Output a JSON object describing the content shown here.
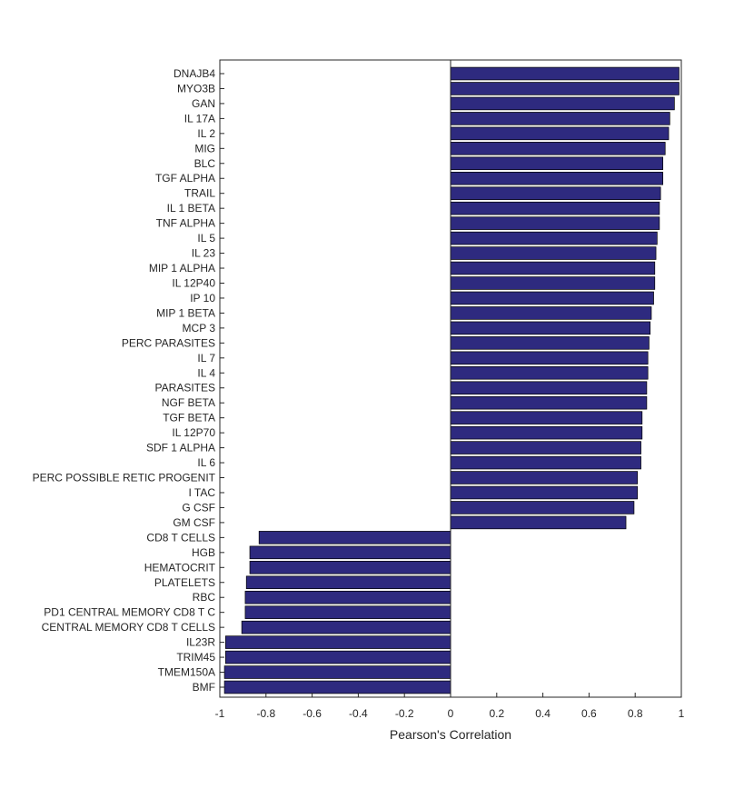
{
  "chart_data": {
    "type": "bar",
    "orientation": "horizontal",
    "xlabel": "Pearson's Correlation",
    "ylabel": "",
    "title": "",
    "xlim": [
      -1,
      1
    ],
    "xticks": [
      -1,
      -0.8,
      -0.6,
      -0.4,
      -0.2,
      0,
      0.2,
      0.4,
      0.6,
      0.8,
      1
    ],
    "xtick_labels": [
      "-1",
      "-0.8",
      "-0.6",
      "-0.4",
      "-0.2",
      "0",
      "0.2",
      "0.4",
      "0.6",
      "0.8",
      "1"
    ],
    "grid": false,
    "bar_color": "#2e2a7f",
    "categories": [
      "DNAJB4",
      "MYO3B",
      "GAN",
      "IL 17A",
      "IL 2",
      "MIG",
      "BLC",
      "TGF ALPHA",
      "TRAIL",
      "IL 1 BETA",
      "TNF ALPHA",
      "IL 5",
      "IL 23",
      "MIP 1 ALPHA",
      "IL 12P40",
      "IP 10",
      "MIP 1 BETA",
      "MCP 3",
      "PERC PARASITES",
      "IL 7",
      "IL 4",
      "PARASITES",
      "NGF BETA",
      "TGF BETA",
      "IL 12P70",
      "SDF 1 ALPHA",
      "IL 6",
      "PERC POSSIBLE RETIC PROGENIT",
      "I TAC",
      "G CSF",
      "GM CSF",
      "CD8  T CELLS",
      "HGB",
      "HEMATOCRIT",
      "PLATELETS",
      "RBC",
      "PD1  CENTRAL MEMORY CD8  T C",
      "CENTRAL MEMORY CD8  T CELLS",
      "IL23R",
      "TRIM45",
      "TMEM150A",
      "BMF"
    ],
    "values": [
      0.99,
      0.99,
      0.97,
      0.95,
      0.945,
      0.93,
      0.92,
      0.92,
      0.91,
      0.905,
      0.905,
      0.895,
      0.89,
      0.885,
      0.885,
      0.88,
      0.87,
      0.865,
      0.86,
      0.855,
      0.855,
      0.85,
      0.85,
      0.83,
      0.83,
      0.825,
      0.825,
      0.81,
      0.81,
      0.795,
      0.76,
      -0.83,
      -0.87,
      -0.87,
      -0.885,
      -0.89,
      -0.89,
      -0.905,
      -0.975,
      -0.975,
      -0.98,
      -0.98
    ]
  }
}
